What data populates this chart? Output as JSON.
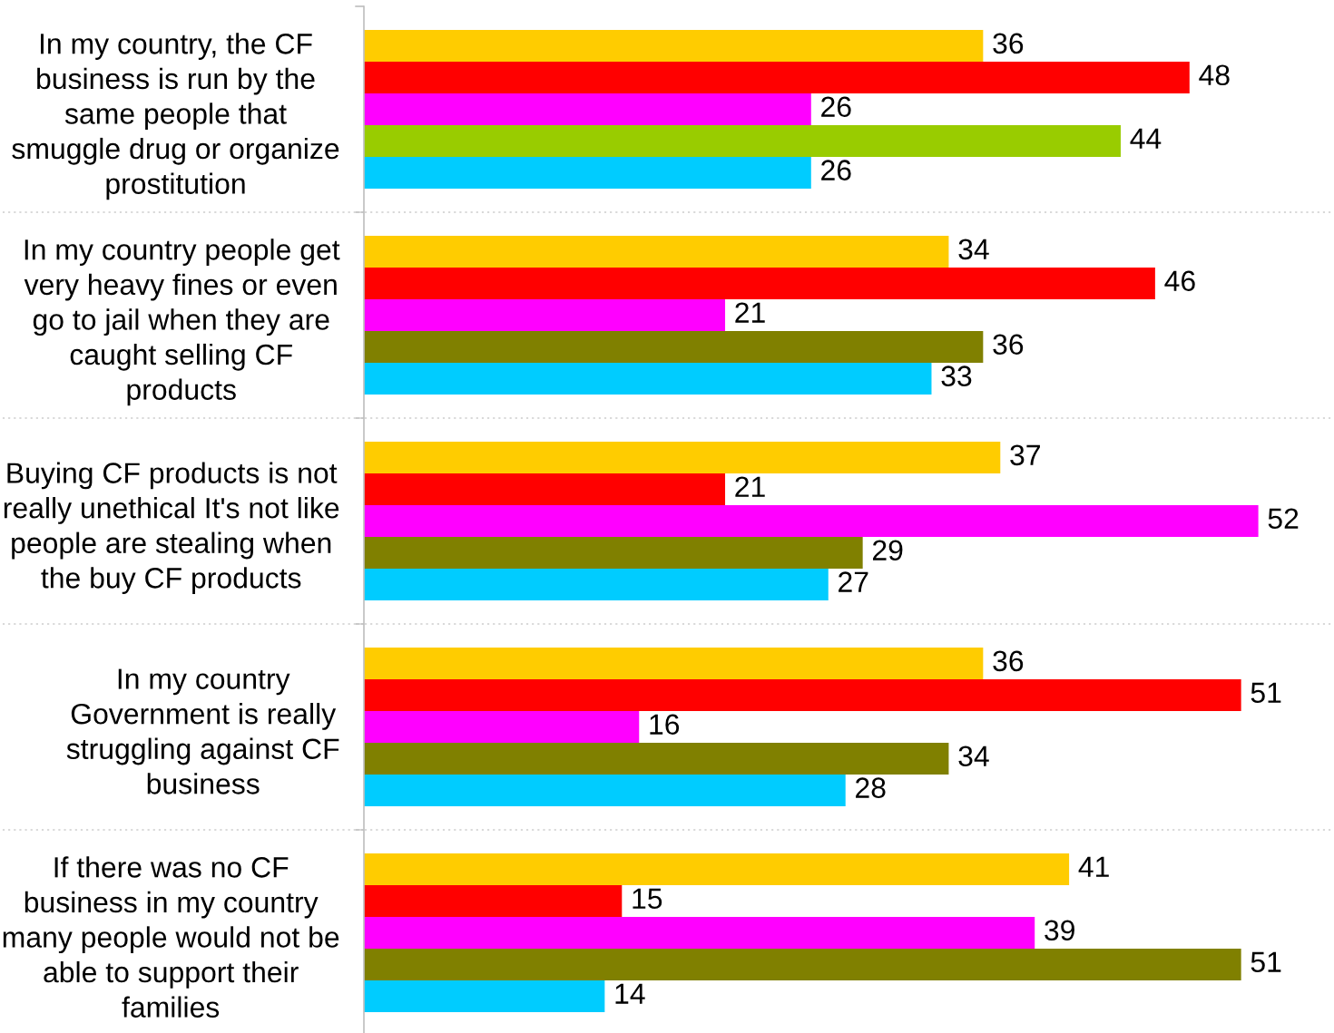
{
  "chart_data": {
    "type": "bar",
    "orientation": "horizontal",
    "categories": [
      "In my country, the CF\nbusiness is run by the\nsame people that\nsmuggle drug or organize\nprostitution",
      "In my country people get\nvery heavy fines or even\ngo to jail when they are\ncaught selling CF\nproducts",
      "Buying CF products is not\nreally unethical It's not like\npeople are stealing when\nthe buy CF products",
      "In my country\nGovernment is really\nstruggling against CF\nbusiness",
      "If there was no CF\nbusiness in my country\nmany people would not be\nable to support their\nfamilies"
    ],
    "series": [
      {
        "color": "#ffcc00",
        "values": [
          36,
          34,
          37,
          36,
          41
        ]
      },
      {
        "color": "#ff0000",
        "values": [
          48,
          46,
          21,
          51,
          15
        ]
      },
      {
        "color": "#ff00ff",
        "values": [
          26,
          21,
          52,
          16,
          39
        ]
      },
      {
        "colors": [
          "#99cc00",
          "#808000",
          "#808000",
          "#808000",
          "#808000"
        ],
        "values": [
          44,
          36,
          29,
          34,
          51
        ]
      },
      {
        "color": "#00ccff",
        "values": [
          26,
          33,
          27,
          28,
          14
        ]
      }
    ],
    "xlim": [
      0,
      56.4
    ],
    "data_labels": true,
    "grid": "y",
    "tick_labels": "y"
  }
}
